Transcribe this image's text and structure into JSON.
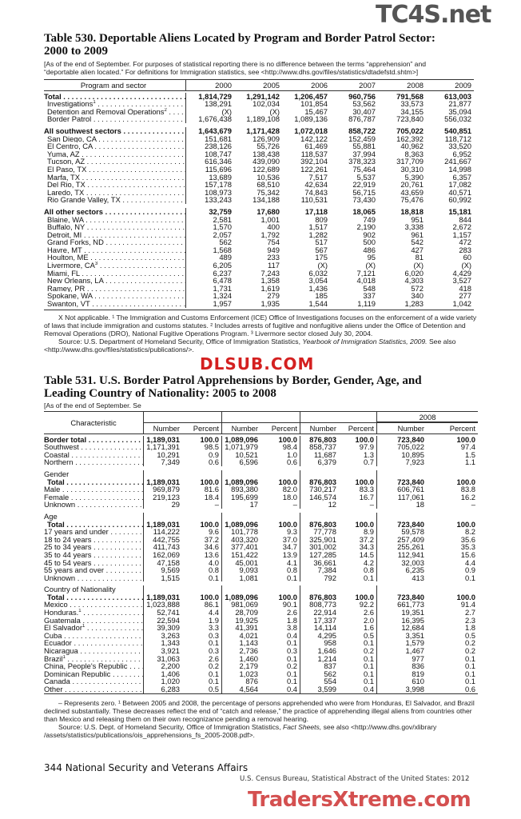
{
  "table530": {
    "title_line1": "Table 530. Deportable Aliens Located by Program and Border Patrol Sector:",
    "title_line2": "2000 to 2009",
    "headnote_line1": "[As of the end of September. For purposes of statistical reporting there is no difference between the terms “apprehension” and",
    "headnote_line2": "“deportable alien located.” For definitions for Immigration statistics, see <http://www.dhs.gov/files/statistics/dtadefstd.shtm>]",
    "columns": [
      "Program and sector",
      "2000",
      "2005",
      "2006",
      "2007",
      "2008",
      "2009"
    ],
    "rows": [
      {
        "label": "Total",
        "bold": true,
        "values": [
          "1,814,729",
          "1,291,142",
          "1,206,457",
          "960,756",
          "791,568",
          "613,003"
        ]
      },
      {
        "label": "Investigations",
        "sup": "1",
        "indent": true,
        "values": [
          "138,291",
          "102,034",
          "101,854",
          "53,562",
          "33,573",
          "21,877"
        ]
      },
      {
        "label": "Detention and Removal Operations",
        "sup": "2",
        "indent": true,
        "values": [
          "(X)",
          "(X)",
          "15,467",
          "30,407",
          "34,155",
          "35,094"
        ]
      },
      {
        "label": "Border Patrol",
        "indent": true,
        "values": [
          "1,676,438",
          "1,189,108",
          "1,089,136",
          "876,787",
          "723,840",
          "556,032"
        ]
      },
      {
        "label": "All southwest sectors",
        "bold": true,
        "gap": true,
        "values": [
          "1,643,679",
          "1,171,428",
          "1,072,018",
          "858,722",
          "705,022",
          "540,851"
        ]
      },
      {
        "label": "San Diego, CA",
        "indent": true,
        "values": [
          "151,681",
          "126,909",
          "142,122",
          "152,459",
          "162,392",
          "118,712"
        ]
      },
      {
        "label": "El Centro, CA",
        "indent": true,
        "values": [
          "238,126",
          "55,726",
          "61,469",
          "55,881",
          "40,962",
          "33,520"
        ]
      },
      {
        "label": "Yuma, AZ",
        "indent": true,
        "values": [
          "108,747",
          "138,438",
          "118,537",
          "37,994",
          "8,363",
          "6,952"
        ]
      },
      {
        "label": "Tucson, AZ",
        "indent": true,
        "values": [
          "616,346",
          "439,090",
          "392,104",
          "378,323",
          "317,709",
          "241,667"
        ]
      },
      {
        "label": "El Paso, TX",
        "indent": true,
        "values": [
          "115,696",
          "122,689",
          "122,261",
          "75,464",
          "30,310",
          "14,998"
        ]
      },
      {
        "label": "Marfa, TX",
        "indent": true,
        "values": [
          "13,689",
          "10,536",
          "7,517",
          "5,537",
          "5,390",
          "6,357"
        ]
      },
      {
        "label": "Del Rio, TX",
        "indent": true,
        "values": [
          "157,178",
          "68,510",
          "42,634",
          "22,919",
          "20,761",
          "17,082"
        ]
      },
      {
        "label": "Laredo, TX",
        "indent": true,
        "values": [
          "108,973",
          "75,342",
          "74,843",
          "56,715",
          "43,659",
          "40,571"
        ]
      },
      {
        "label": "Rio Grande Valley, TX",
        "indent": true,
        "values": [
          "133,243",
          "134,188",
          "110,531",
          "73,430",
          "75,476",
          "60,992"
        ]
      },
      {
        "label": "All other sectors",
        "bold": true,
        "gap": true,
        "values": [
          "32,759",
          "17,680",
          "17,118",
          "18,065",
          "18,818",
          "15,181"
        ]
      },
      {
        "label": "Blaine, WA",
        "indent": true,
        "values": [
          "2,581",
          "1,001",
          "809",
          "749",
          "951",
          "844"
        ]
      },
      {
        "label": "Buffalo, NY",
        "indent": true,
        "values": [
          "1,570",
          "400",
          "1,517",
          "2,190",
          "3,338",
          "2,672"
        ]
      },
      {
        "label": "Detroit, MI",
        "indent": true,
        "values": [
          "2,057",
          "1,792",
          "1,282",
          "902",
          "961",
          "1,157"
        ]
      },
      {
        "label": "Grand Forks, ND",
        "indent": true,
        "values": [
          "562",
          "754",
          "517",
          "500",
          "542",
          "472"
        ]
      },
      {
        "label": "Havre, MT",
        "indent": true,
        "values": [
          "1,568",
          "949",
          "567",
          "486",
          "427",
          "283"
        ]
      },
      {
        "label": "Houlton, ME",
        "indent": true,
        "values": [
          "489",
          "233",
          "175",
          "95",
          "81",
          "60"
        ]
      },
      {
        "label": "Livermore, CA",
        "sup": "3",
        "indent": true,
        "values": [
          "6,205",
          "117",
          "(X)",
          "(X)",
          "(X)",
          "(X)"
        ]
      },
      {
        "label": "Miami, FL",
        "indent": true,
        "values": [
          "6,237",
          "7,243",
          "6,032",
          "7,121",
          "6,020",
          "4,429"
        ]
      },
      {
        "label": "New Orleans, LA",
        "indent": true,
        "values": [
          "6,478",
          "1,358",
          "3,054",
          "4,018",
          "4,303",
          "3,527"
        ]
      },
      {
        "label": "Ramey, PR",
        "indent": true,
        "values": [
          "1,731",
          "1,619",
          "1,436",
          "548",
          "572",
          "418"
        ]
      },
      {
        "label": "Spokane, WA",
        "indent": true,
        "values": [
          "1,324",
          "279",
          "185",
          "337",
          "340",
          "277"
        ]
      },
      {
        "label": "Swanton, VT",
        "indent": true,
        "values": [
          "1,957",
          "1,935",
          "1,544",
          "1,119",
          "1,283",
          "1,042"
        ]
      }
    ],
    "footnote": "X Not applicable. ¹ The Immigration and Customs Enforcement (ICE) Office of Investigations focuses on the enforcement of a wide variety of laws that include immigration and customs statutes. ² Includes arrests of fugitive and nonfugitive aliens under the Office of Detention and Removal Operations (DRO), National Fugitive Operations Program. ³ Livermore sector closed July 30, 2004.",
    "source_prefix": "Source: U.S. Department of Homeland Security, Office of Immigration Statistics, ",
    "source_italic": "Yearbook of Immigration Statistics, 2009.",
    "source_suffix": " See also <http://www.dhs.gov/files/statistics/publications/>."
  },
  "table531": {
    "title_line1": "Table 531. U.S. Border Patrol Apprehensions by Border, Gender, Age, and",
    "title_line2": "Leading Country of Nationality: 2005 to 2008",
    "headnote_visible": "[As of the end of September. Se",
    "characteristic_header": "Characteristic",
    "year_header_visible": "2008",
    "sub_headers": [
      "Number",
      "Percent",
      "Number",
      "Percent",
      "Number",
      "Percent",
      "Number",
      "Percent"
    ],
    "rows": [
      {
        "label": "Border total",
        "bold": true,
        "values": [
          "1,189,031",
          "100.0",
          "1,089,096",
          "100.0",
          "876,803",
          "100.0",
          "723,840",
          "100.0"
        ]
      },
      {
        "label": "Southwest",
        "values": [
          "1,171,391",
          "98.5",
          "1,071,979",
          "98.4",
          "858,737",
          "97.9",
          "705,022",
          "97.4"
        ]
      },
      {
        "label": "Coastal",
        "values": [
          "10,291",
          "0.9",
          "10,521",
          "1.0",
          "11,687",
          "1.3",
          "10,895",
          "1.5"
        ]
      },
      {
        "label": "Northern",
        "values": [
          "7,349",
          "0.6",
          "6,596",
          "0.6",
          "6,379",
          "0.7",
          "7,923",
          "1.1"
        ]
      },
      {
        "label": "Gender",
        "section": true,
        "values": [
          "",
          "",
          "",
          "",
          "",
          "",
          "",
          ""
        ]
      },
      {
        "label": "Total",
        "bold": true,
        "indent": true,
        "values": [
          "1,189,031",
          "100.0",
          "1,089,096",
          "100.0",
          "876,803",
          "100.0",
          "723,840",
          "100.0"
        ]
      },
      {
        "label": "Male",
        "values": [
          "969,879",
          "81.6",
          "893,380",
          "82.0",
          "730,217",
          "83.3",
          "606,761",
          "83.8"
        ]
      },
      {
        "label": "Female",
        "values": [
          "219,123",
          "18.4",
          "195,699",
          "18.0",
          "146,574",
          "16.7",
          "117,061",
          "16.2"
        ]
      },
      {
        "label": "Unknown",
        "values": [
          "29",
          "–",
          "17",
          "–",
          "12",
          "–",
          "18",
          "–"
        ]
      },
      {
        "label": "Age",
        "section": true,
        "values": [
          "",
          "",
          "",
          "",
          "",
          "",
          "",
          ""
        ]
      },
      {
        "label": "Total",
        "bold": true,
        "indent": true,
        "values": [
          "1,189,031",
          "100.0",
          "1,089,096",
          "100.0",
          "876,803",
          "100.0",
          "723,840",
          "100.0"
        ]
      },
      {
        "label": "17 years and under",
        "values": [
          "114,222",
          "9.6",
          "101,778",
          "9.3",
          "77,778",
          "8.9",
          "59,578",
          "8.2"
        ]
      },
      {
        "label": "18 to 24 years",
        "values": [
          "442,755",
          "37.2",
          "403,320",
          "37.0",
          "325,901",
          "37.2",
          "257,409",
          "35.6"
        ]
      },
      {
        "label": "25 to 34 years",
        "values": [
          "411,743",
          "34.6",
          "377,401",
          "34.7",
          "301,002",
          "34.3",
          "255,261",
          "35.3"
        ]
      },
      {
        "label": "35 to 44 years",
        "values": [
          "162,069",
          "13.6",
          "151,422",
          "13.9",
          "127,285",
          "14.5",
          "112,941",
          "15.6"
        ]
      },
      {
        "label": "45 to 54 years",
        "values": [
          "47,158",
          "4.0",
          "45,001",
          "4.1",
          "36,661",
          "4.2",
          "32,003",
          "4.4"
        ]
      },
      {
        "label": "55 years and over",
        "values": [
          "9,569",
          "0.8",
          "9,093",
          "0.8",
          "7,384",
          "0.8",
          "6,235",
          "0.9"
        ]
      },
      {
        "label": "Unknown",
        "values": [
          "1,515",
          "0.1",
          "1,081",
          "0.1",
          "792",
          "0.1",
          "413",
          "0.1"
        ]
      },
      {
        "label": "Country of Nationality",
        "section": true,
        "values": [
          "",
          "",
          "",
          "",
          "",
          "",
          "",
          ""
        ]
      },
      {
        "label": "Total",
        "bold": true,
        "indent": true,
        "values": [
          "1,189,031",
          "100.0",
          "1,089,096",
          "100.0",
          "876,803",
          "100.0",
          "723,840",
          "100.0"
        ]
      },
      {
        "label": "Mexico",
        "values": [
          "1,023,888",
          "86.1",
          "981,069",
          "90.1",
          "808,773",
          "92.2",
          "661,773",
          "91.4"
        ]
      },
      {
        "label": "Honduras.",
        "sup": "1",
        "values": [
          "52,741",
          "4.4",
          "28,709",
          "2.6",
          "22,914",
          "2.6",
          "19,351",
          "2.7"
        ]
      },
      {
        "label": "Guatemala",
        "values": [
          "22,594",
          "1.9",
          "19,925",
          "1.8",
          "17,337",
          "2.0",
          "16,395",
          "2.3"
        ]
      },
      {
        "label": "El Salvador",
        "sup": "1",
        "values": [
          "39,309",
          "3.3",
          "41,391",
          "3.8",
          "14,114",
          "1.6",
          "12,684",
          "1.8"
        ]
      },
      {
        "label": "Cuba",
        "values": [
          "3,263",
          "0.3",
          "4,021",
          "0.4",
          "4,295",
          "0.5",
          "3,351",
          "0.5"
        ]
      },
      {
        "label": "Ecuador",
        "values": [
          "1,343",
          "0.1",
          "1,143",
          "0.1",
          "958",
          "0.1",
          "1,579",
          "0.2"
        ]
      },
      {
        "label": "Nicaragua",
        "values": [
          "3,921",
          "0.3",
          "2,736",
          "0.3",
          "1,646",
          "0.2",
          "1,467",
          "0.2"
        ]
      },
      {
        "label": "Brazil",
        "sup": "1",
        "values": [
          "31,063",
          "2.6",
          "1,460",
          "0.1",
          "1,214",
          "0.1",
          "977",
          "0.1"
        ]
      },
      {
        "label": "China, People's Republic",
        "values": [
          "2,200",
          "0.2",
          "2,179",
          "0.2",
          "837",
          "0.1",
          "836",
          "0.1"
        ]
      },
      {
        "label": "Dominican Republic",
        "values": [
          "1,406",
          "0.1",
          "1,023",
          "0.1",
          "562",
          "0.1",
          "819",
          "0.1"
        ]
      },
      {
        "label": "Canada",
        "values": [
          "1,020",
          "0.1",
          "876",
          "0.1",
          "554",
          "0.1",
          "610",
          "0.1"
        ]
      },
      {
        "label": "Other",
        "values": [
          "6,283",
          "0.5",
          "4,564",
          "0.4",
          "3,599",
          "0.4",
          "3,998",
          "0.6"
        ]
      }
    ],
    "footnote": "– Represents zero. ¹ Between 2005 and 2008, the percentage of persons apprehended who were from Honduras, El Salvador, and Brazil declined substantially. These decreases reflect the end of “catch and release,” the practice of apprehending illegal aliens from countries other than Mexico and releasing them on their own recognizance pending a removal hearing.",
    "source_prefix": "Source: U.S. Dept. of Homeland Security, Office of Immigration Statistics, ",
    "source_italic": "Fact Sheets,",
    "source_suffix": " see also <http://www.dhs.gov/xlibrary /assets/statistics/publications/ois_apprehensions_fs_2005-2008.pdf>."
  },
  "footer": {
    "page": "344  National Security and Veterans Affairs",
    "credit": "U.S. Census Bureau, Statistical Abstract of the United States: 2012"
  },
  "watermarks": {
    "top": "TC4S.net",
    "middle": "DLSUB.COM",
    "bottom": "TradersXtreme.com",
    "top_color": "#555555",
    "red": "#d42020"
  }
}
